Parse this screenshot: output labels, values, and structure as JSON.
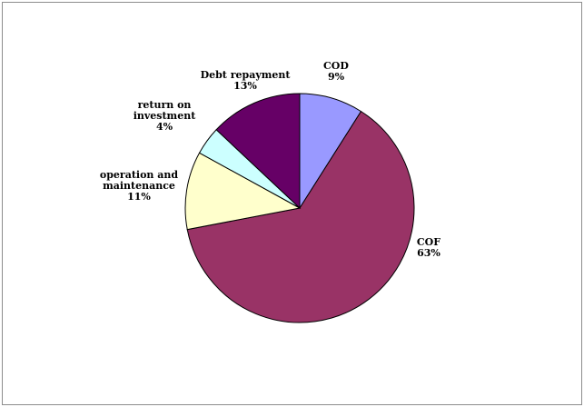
{
  "chart_data": {
    "type": "pie",
    "slices": [
      {
        "label": "COD",
        "percent_text": "9%",
        "value": 9,
        "color": "#9999FF"
      },
      {
        "label": "COF",
        "percent_text": "63%",
        "value": 63,
        "color": "#993366"
      },
      {
        "label": "operation and\nmaintenance",
        "percent_text": "11%",
        "value": 11,
        "color": "#FFFFCC"
      },
      {
        "label": "return on\ninvestment",
        "percent_text": "4%",
        "value": 4,
        "color": "#CCFFFF"
      },
      {
        "label": "Debt repayment",
        "percent_text": "13%",
        "value": 13,
        "color": "#660066"
      }
    ],
    "start": "top",
    "direction": "clockwise",
    "legend": "none"
  }
}
